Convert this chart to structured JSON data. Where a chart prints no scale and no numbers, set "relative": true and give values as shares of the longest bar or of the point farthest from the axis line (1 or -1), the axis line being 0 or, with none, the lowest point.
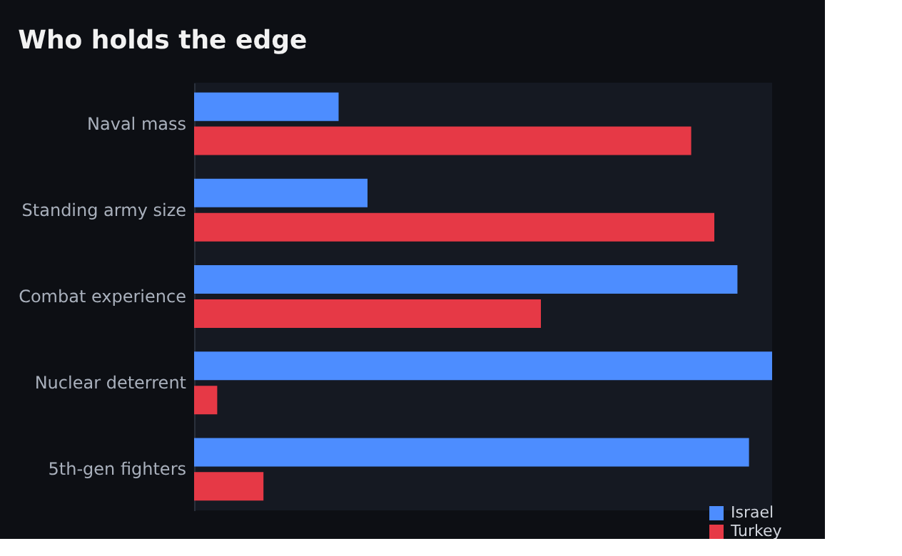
{
  "chart_data": {
    "type": "bar",
    "orientation": "horizontal",
    "relative": true,
    "title": "Who holds the edge",
    "categories": [
      "Naval mass",
      "Standing army size",
      "Combat experience",
      "Nuclear deterrent",
      "5th-gen fighters"
    ],
    "series": [
      {
        "name": "Israel",
        "color": "#4d8dff",
        "values": [
          0.25,
          0.3,
          0.94,
          1.0,
          0.96
        ]
      },
      {
        "name": "Turkey",
        "color": "#e63946",
        "values": [
          0.86,
          0.9,
          0.6,
          0.04,
          0.12
        ]
      }
    ],
    "legend": "bottom right"
  }
}
